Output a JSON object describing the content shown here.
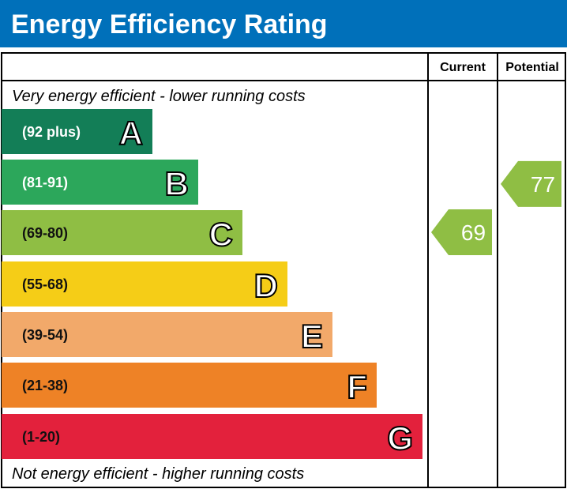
{
  "chart_data": {
    "type": "bar",
    "title": "Energy Efficiency Rating",
    "columns": [
      "Current",
      "Potential"
    ],
    "top_note": "Very energy efficient - lower running costs",
    "bottom_note": "Not energy efficient - higher running costs",
    "bands": [
      {
        "letter": "A",
        "range": "(92 plus)",
        "color": "#137e57"
      },
      {
        "letter": "B",
        "range": "(81-91)",
        "color": "#2ca75b"
      },
      {
        "letter": "C",
        "range": "(69-80)",
        "color": "#8fbe44"
      },
      {
        "letter": "D",
        "range": "(55-68)",
        "color": "#f5cd17"
      },
      {
        "letter": "E",
        "range": "(39-54)",
        "color": "#f2a96a"
      },
      {
        "letter": "F",
        "range": "(21-38)",
        "color": "#ee8226"
      },
      {
        "letter": "G",
        "range": "(1-20)",
        "color": "#e3213c"
      }
    ],
    "current": {
      "value": 69,
      "band": "C",
      "color": "#8fbe44"
    },
    "potential": {
      "value": 77,
      "band": "C",
      "color": "#8fbe44"
    },
    "header_color": "#0070ba"
  }
}
